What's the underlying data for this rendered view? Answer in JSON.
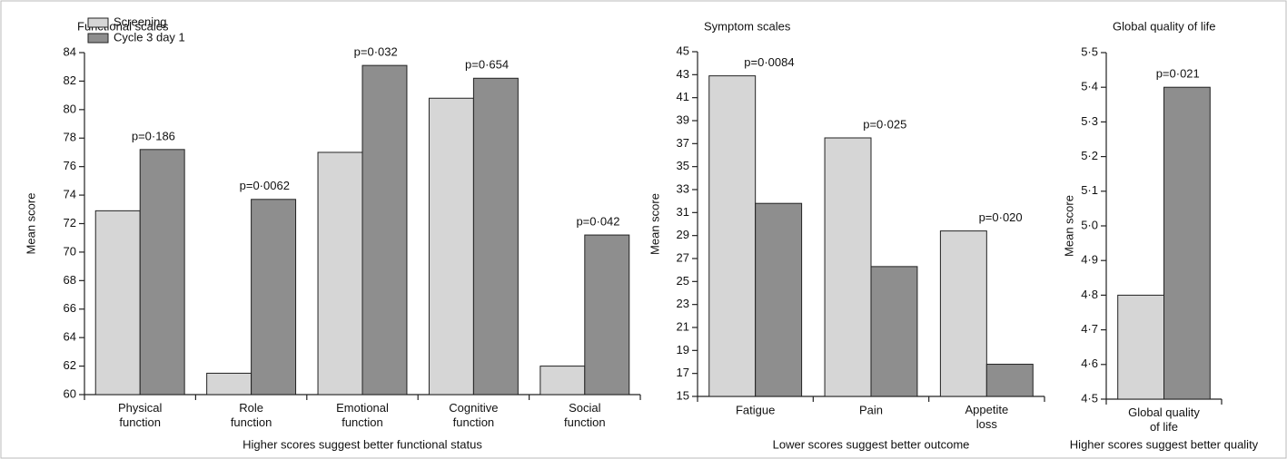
{
  "chart_data": [
    {
      "type": "bar",
      "title": "Functional scales",
      "ylabel": "Mean score",
      "xlabel": "Higher scores suggest better functional status",
      "categories": [
        "Physical\nfunction",
        "Role\nfunction",
        "Emotional\nfunction",
        "Cognitive\nfunction",
        "Social\nfunction"
      ],
      "series": [
        {
          "name": "Screening",
          "color": "#d6d6d6",
          "values": [
            72.9,
            61.5,
            77.0,
            80.8,
            62.0
          ]
        },
        {
          "name": "Cycle 3 day 1",
          "color": "#8e8e8e",
          "values": [
            77.2,
            73.7,
            83.1,
            82.2,
            71.2
          ]
        }
      ],
      "annotations": [
        "p=0·186",
        "p=0·0062",
        "p=0·032",
        "p=0·654",
        "p=0·042"
      ],
      "ylim": [
        60,
        84
      ],
      "yticks": [
        60,
        62,
        64,
        66,
        68,
        70,
        72,
        74,
        76,
        78,
        80,
        82,
        84
      ],
      "legend": "upper left"
    },
    {
      "type": "bar",
      "title": "Symptom scales",
      "ylabel": "Mean score",
      "xlabel": "Lower scores suggest better outcome",
      "categories": [
        "Fatigue",
        "Pain",
        "Appetite\nloss"
      ],
      "series": [
        {
          "color": "#d6d6d6",
          "values": [
            42.9,
            37.5,
            29.4
          ]
        },
        {
          "color": "#8e8e8e",
          "values": [
            31.8,
            26.3,
            17.8
          ]
        }
      ],
      "annotations": [
        "p=0·0084",
        "p=0·025",
        "p=0·020"
      ],
      "ylim": [
        15,
        45
      ],
      "yticks": [
        15,
        17,
        19,
        21,
        23,
        25,
        27,
        29,
        31,
        33,
        35,
        37,
        39,
        41,
        43,
        45
      ]
    },
    {
      "type": "bar",
      "title": "Global quality of life",
      "ylabel": "Mean score",
      "xlabel": "Higher scores suggest better quality",
      "categories": [
        "Global quality\nof life"
      ],
      "series": [
        {
          "color": "#d6d6d6",
          "values": [
            4.8
          ]
        },
        {
          "color": "#8e8e8e",
          "values": [
            5.4
          ]
        }
      ],
      "annotations": [
        "p=0·021"
      ],
      "ylim": [
        4.5,
        5.5
      ],
      "yticks": [
        {
          "value": 4.5,
          "label": "4·5"
        },
        {
          "value": 4.6,
          "label": "4·6"
        },
        {
          "value": 4.7,
          "label": "4·7"
        },
        {
          "value": 4.8,
          "label": "4·8"
        },
        {
          "value": 4.9,
          "label": "4·9"
        },
        {
          "value": 5.0,
          "label": "5·0"
        },
        {
          "value": 5.1,
          "label": "5·1"
        },
        {
          "value": 5.2,
          "label": "5·2"
        },
        {
          "value": 5.3,
          "label": "5·3"
        },
        {
          "value": 5.4,
          "label": "5·4"
        },
        {
          "value": 5.5,
          "label": "5·5"
        }
      ]
    }
  ]
}
